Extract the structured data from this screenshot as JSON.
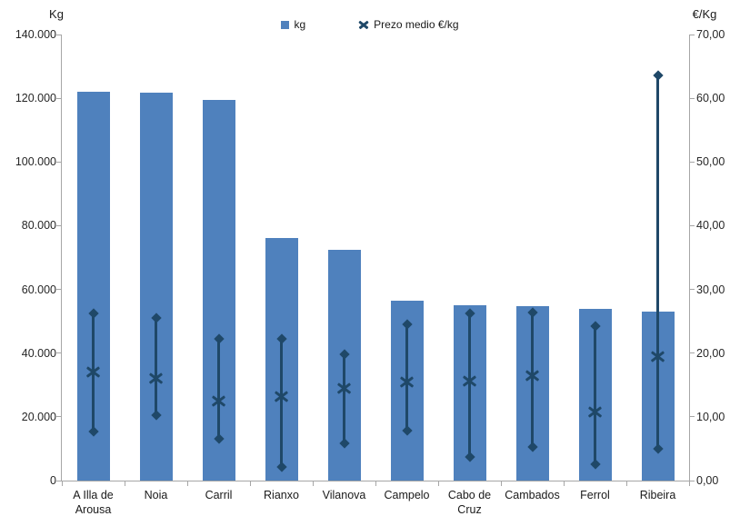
{
  "chart_data": {
    "type": "bar",
    "title": "",
    "subtitle": "",
    "categories": [
      "A Illa de Arousa",
      "Noia",
      "Carril",
      "Rianxo",
      "Vilanova",
      "Campelo",
      "Cabo de Cruz",
      "Cambados",
      "Ferrol",
      "Ribeira"
    ],
    "series": [
      {
        "name": "kg",
        "type": "bar",
        "axis": "left",
        "values": [
          122000,
          121700,
          119500,
          76000,
          72500,
          56500,
          55000,
          54700,
          54000,
          53000
        ]
      },
      {
        "name": "Prezo medio €/kg",
        "type": "high-low-mean",
        "axis": "right",
        "high": [
          26.3,
          25.5,
          22.3,
          22.3,
          19.8,
          24.5,
          26.3,
          26.4,
          24.2,
          63.6
        ],
        "mean": [
          17.0,
          16.0,
          12.5,
          13.2,
          14.4,
          15.5,
          15.6,
          16.4,
          10.8,
          19.5
        ],
        "low": [
          7.7,
          10.3,
          6.5,
          2.2,
          5.8,
          7.8,
          3.7,
          5.3,
          2.6,
          5.0
        ]
      }
    ],
    "left_axis": {
      "title": "Kg",
      "range": [
        0,
        140000
      ],
      "tick_step": 20000,
      "tick_labels": [
        "140.000",
        "120.000",
        "100.000",
        "80.000",
        "60.000",
        "40.000",
        "20.000",
        "0"
      ]
    },
    "right_axis": {
      "title": "€/Kg",
      "range": [
        0,
        70
      ],
      "tick_step": 10,
      "tick_labels": [
        "70,00",
        "60,00",
        "50,00",
        "40,00",
        "30,00",
        "20,00",
        "10,00",
        "0,00"
      ]
    },
    "legend_position": "top",
    "grid": false,
    "colors": {
      "bar": "#4f81bd",
      "marker": "#1f4868",
      "axis": "#a6a6a6",
      "text": "#262626"
    }
  }
}
